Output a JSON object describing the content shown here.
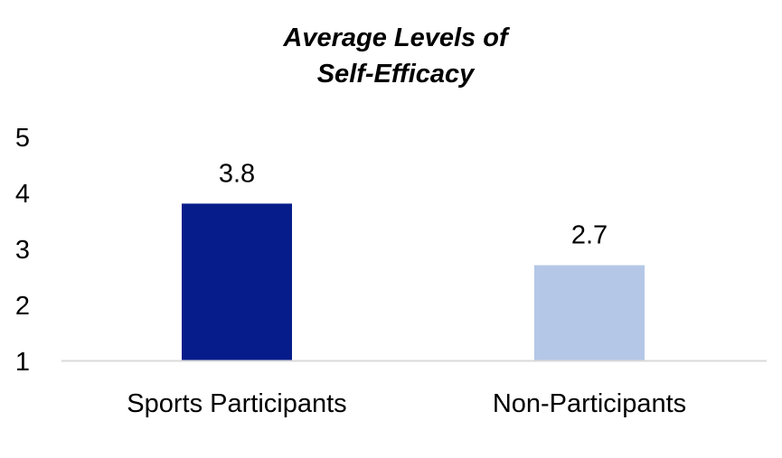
{
  "chart_data": {
    "type": "bar",
    "title_lines": [
      "Average Levels of",
      "Self-Efficacy"
    ],
    "categories": [
      "Sports Participants",
      "Non-Participants"
    ],
    "values": [
      3.8,
      2.7
    ],
    "data_labels": [
      "3.8",
      "2.7"
    ],
    "ylim": [
      1,
      5
    ],
    "y_ticks": [
      "1",
      "2",
      "3",
      "4",
      "5"
    ],
    "bar_colors": [
      "#061c8a",
      "#b4c7e7"
    ],
    "axis_color": "#d9d9d9",
    "grid": false,
    "legend": "none"
  }
}
